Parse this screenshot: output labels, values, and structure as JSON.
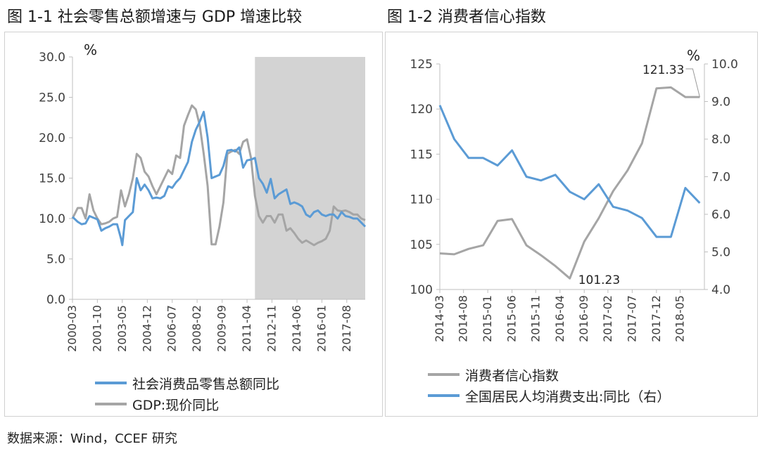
{
  "titles": {
    "fig1": "图 1-1  社会零售总额增速与 GDP 增速比较",
    "fig2": "图 1-2  消费者信心指数"
  },
  "source": "数据来源：Wind，CCEF 研究",
  "colors": {
    "blue": "#5b9bd5",
    "gray": "#a5a5a5",
    "shade": "#d3d3d3",
    "axis": "#bfbfbf",
    "text": "#404040"
  },
  "chart_data": [
    {
      "type": "line",
      "unit_label": "%",
      "ylim": [
        0,
        30
      ],
      "yticks": [
        0,
        5,
        10,
        15,
        20,
        25,
        30
      ],
      "ytick_labels": [
        "0.0",
        "5.0",
        "10.0",
        "15.0",
        "20.0",
        "25.0",
        "30.0"
      ],
      "xlim": [
        2000.17,
        2018.75
      ],
      "xticks": [
        2000.17,
        2001.75,
        2003.33,
        2004.92,
        2006.5,
        2008.08,
        2009.67,
        2011.25,
        2012.83,
        2014.42,
        2016.0,
        2017.58
      ],
      "xtick_labels": [
        "2000-03",
        "2001-10",
        "2003-05",
        "2004-12",
        "2006-07",
        "2008-02",
        "2009-09",
        "2011-04",
        "2012-11",
        "2014-06",
        "2016-01",
        "2017-08"
      ],
      "shaded_range": [
        2011.75,
        2018.75
      ],
      "series": [
        {
          "name": "社会消费品零售总额同比",
          "color": "#5b9bd5",
          "x": [
            2000.17,
            2000.5,
            2000.75,
            2001.0,
            2001.25,
            2001.5,
            2001.75,
            2002.0,
            2002.25,
            2002.5,
            2002.75,
            2003.0,
            2003.25,
            2003.33,
            2003.5,
            2003.75,
            2004.0,
            2004.25,
            2004.5,
            2004.75,
            2005.0,
            2005.25,
            2005.5,
            2005.75,
            2006.0,
            2006.25,
            2006.5,
            2006.75,
            2007.0,
            2007.25,
            2007.5,
            2007.75,
            2008.0,
            2008.25,
            2008.5,
            2008.75,
            2009.0,
            2009.25,
            2009.5,
            2009.75,
            2010.0,
            2010.25,
            2010.5,
            2010.75,
            2011.0,
            2011.25,
            2011.5,
            2011.75,
            2012.0,
            2012.25,
            2012.5,
            2012.75,
            2013.0,
            2013.25,
            2013.5,
            2013.75,
            2014.0,
            2014.25,
            2014.5,
            2014.75,
            2015.0,
            2015.25,
            2015.5,
            2015.75,
            2016.0,
            2016.25,
            2016.5,
            2016.75,
            2017.0,
            2017.25,
            2017.5,
            2017.75,
            2018.0,
            2018.25,
            2018.5,
            2018.75
          ],
          "y": [
            10.2,
            9.6,
            9.3,
            9.4,
            10.3,
            10.1,
            9.9,
            8.5,
            8.8,
            9.0,
            9.3,
            9.3,
            7.5,
            6.7,
            9.8,
            10.3,
            10.8,
            15.0,
            13.5,
            14.2,
            13.5,
            12.5,
            12.6,
            12.5,
            12.8,
            14.0,
            13.8,
            14.5,
            15.0,
            16.0,
            17.0,
            19.5,
            21.0,
            22.0,
            23.2,
            20.0,
            15.0,
            15.2,
            15.4,
            16.5,
            18.4,
            18.5,
            18.3,
            18.8,
            16.3,
            17.2,
            17.3,
            17.5,
            15.0,
            14.3,
            13.2,
            14.9,
            12.5,
            13.0,
            13.3,
            13.6,
            11.8,
            12.0,
            11.8,
            11.5,
            10.5,
            10.2,
            10.8,
            11.0,
            10.5,
            10.3,
            10.5,
            10.5,
            10.0,
            10.8,
            10.3,
            10.2,
            10.0,
            10.0,
            9.5,
            9.0
          ]
        },
        {
          "name": "GDP:现价同比",
          "color": "#a5a5a5",
          "x": [
            2000.17,
            2000.5,
            2000.75,
            2001.0,
            2001.25,
            2001.5,
            2001.75,
            2002.0,
            2002.25,
            2002.5,
            2002.75,
            2003.0,
            2003.25,
            2003.5,
            2003.75,
            2004.0,
            2004.25,
            2004.5,
            2004.75,
            2005.0,
            2005.25,
            2005.5,
            2005.75,
            2006.0,
            2006.25,
            2006.5,
            2006.75,
            2007.0,
            2007.25,
            2007.5,
            2007.75,
            2008.0,
            2008.25,
            2008.5,
            2008.75,
            2009.0,
            2009.25,
            2009.5,
            2009.75,
            2010.0,
            2010.25,
            2010.5,
            2010.75,
            2011.0,
            2011.25,
            2011.5,
            2011.75,
            2012.0,
            2012.25,
            2012.5,
            2012.75,
            2013.0,
            2013.25,
            2013.5,
            2013.75,
            2014.0,
            2014.25,
            2014.5,
            2014.75,
            2015.0,
            2015.25,
            2015.5,
            2015.75,
            2016.0,
            2016.25,
            2016.5,
            2016.75,
            2017.0,
            2017.25,
            2017.5,
            2017.75,
            2018.0,
            2018.25,
            2018.5,
            2018.75
          ],
          "y": [
            10.0,
            11.3,
            11.3,
            10.0,
            13.0,
            11.0,
            10.0,
            9.3,
            9.4,
            9.6,
            10.0,
            10.2,
            13.5,
            11.5,
            13.0,
            15.0,
            18.0,
            17.5,
            15.8,
            15.2,
            14.0,
            13.0,
            14.0,
            15.0,
            16.0,
            15.5,
            17.8,
            17.5,
            21.5,
            22.8,
            24.0,
            23.5,
            21.5,
            18.0,
            14.0,
            6.8,
            6.8,
            9.0,
            12.0,
            18.0,
            18.3,
            18.5,
            18.0,
            19.5,
            19.8,
            17.5,
            12.8,
            10.3,
            9.5,
            10.3,
            10.3,
            9.5,
            10.5,
            10.5,
            8.5,
            8.8,
            8.2,
            7.5,
            7.0,
            7.3,
            7.0,
            6.7,
            7.0,
            7.2,
            7.5,
            8.5,
            11.5,
            11.0,
            10.9,
            11.0,
            10.8,
            10.5,
            10.5,
            10.0,
            9.8
          ]
        }
      ]
    },
    {
      "type": "line",
      "unit_label": "%",
      "ylim_left": [
        100,
        125
      ],
      "yticks_left": [
        100,
        105,
        110,
        115,
        120,
        125
      ],
      "ytick_labels_left": [
        "100",
        "105",
        "110",
        "115",
        "120",
        "125"
      ],
      "ylim_right": [
        4.0,
        10.0
      ],
      "yticks_right": [
        4,
        5,
        6,
        7,
        8,
        9,
        10
      ],
      "ytick_labels_right": [
        "4.0",
        "5.0",
        "6.0",
        "7.0",
        "8.0",
        "9.0",
        "10.0"
      ],
      "xlim": [
        2014.17,
        2018.75
      ],
      "xticks": [
        2014.17,
        2014.58,
        2015.0,
        2015.42,
        2015.83,
        2016.25,
        2016.67,
        2017.08,
        2017.5,
        2017.92,
        2018.33
      ],
      "xtick_labels": [
        "2014-03",
        "2014-08",
        "2015-01",
        "2015-06",
        "2015-11",
        "2016-04",
        "2016-09",
        "2017-02",
        "2017-07",
        "2017-12",
        "2018-05"
      ],
      "annotations": [
        {
          "text": "121.33",
          "series": "消费者信心指数"
        },
        {
          "text": "101.23",
          "series": "消费者信心指数"
        }
      ],
      "series": [
        {
          "name": "消费者信心指数",
          "color": "#a5a5a5",
          "axis": "left",
          "x": [
            2014.17,
            2014.42,
            2014.67,
            2014.92,
            2015.17,
            2015.42,
            2015.67,
            2015.92,
            2016.17,
            2016.42,
            2016.67,
            2016.92,
            2017.17,
            2017.42,
            2017.67,
            2017.92,
            2018.17,
            2018.42,
            2018.67
          ],
          "y": [
            104.0,
            103.9,
            104.5,
            104.9,
            107.6,
            107.8,
            104.9,
            103.8,
            102.6,
            101.23,
            105.3,
            107.9,
            110.9,
            113.2,
            116.2,
            122.3,
            122.4,
            121.33,
            121.33
          ]
        },
        {
          "name": "全国居民人均消费支出:同比（右）",
          "color": "#5b9bd5",
          "axis": "right",
          "x": [
            2014.17,
            2014.42,
            2014.67,
            2014.92,
            2015.17,
            2015.42,
            2015.67,
            2015.92,
            2016.17,
            2016.42,
            2016.67,
            2016.92,
            2017.17,
            2017.42,
            2017.67,
            2017.92,
            2018.17,
            2018.42,
            2018.67
          ],
          "y": [
            8.9,
            8.0,
            7.5,
            7.5,
            7.3,
            7.7,
            7.0,
            6.9,
            7.05,
            6.6,
            6.4,
            6.8,
            6.2,
            6.1,
            5.9,
            5.4,
            5.4,
            6.7,
            6.3
          ]
        }
      ]
    }
  ]
}
